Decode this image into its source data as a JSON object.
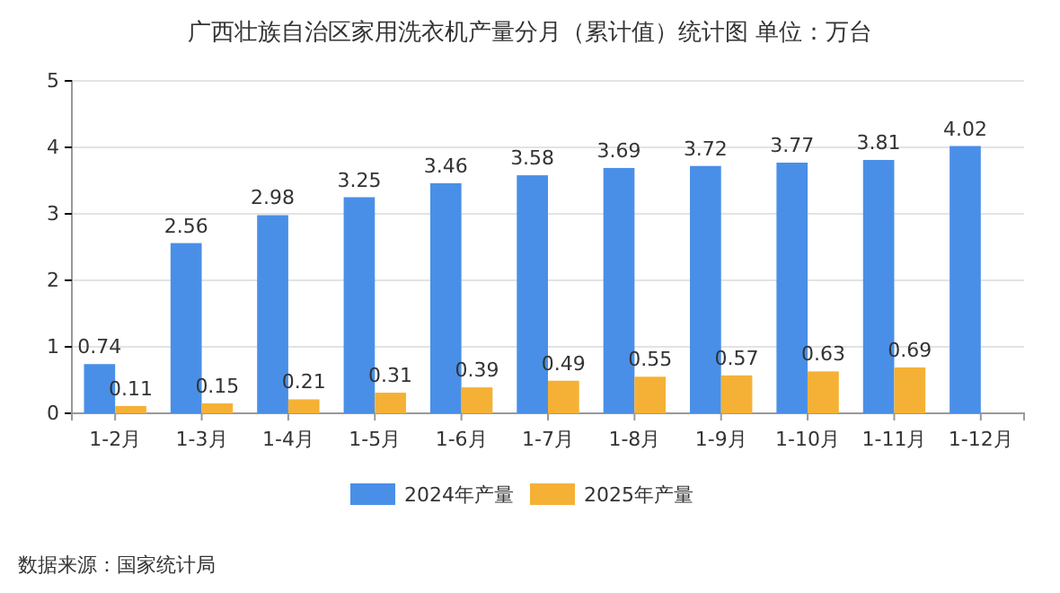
{
  "chart_data": {
    "type": "bar",
    "title": "广西壮族自治区家用洗衣机产量分月（累计值）统计图 单位：万台",
    "categories": [
      "1-2月",
      "1-3月",
      "1-4月",
      "1-5月",
      "1-6月",
      "1-7月",
      "1-8月",
      "1-9月",
      "1-10月",
      "1-11月",
      "1-12月"
    ],
    "series": [
      {
        "name": "2024年产量",
        "color": "#4a8fe7",
        "values": [
          0.74,
          2.56,
          2.98,
          3.25,
          3.46,
          3.58,
          3.69,
          3.72,
          3.77,
          3.81,
          4.02
        ]
      },
      {
        "name": "2025年产量",
        "color": "#f5b135",
        "values": [
          0.11,
          0.15,
          0.21,
          0.31,
          0.39,
          0.49,
          0.55,
          0.57,
          0.63,
          0.69,
          null
        ]
      }
    ],
    "ylim": [
      0,
      5
    ],
    "yticks": [
      0,
      1,
      2,
      3,
      4,
      5
    ],
    "grid": "y",
    "legend": "bottom",
    "data_labels": true,
    "annotations": [
      "数据来源：国家统计局"
    ]
  }
}
